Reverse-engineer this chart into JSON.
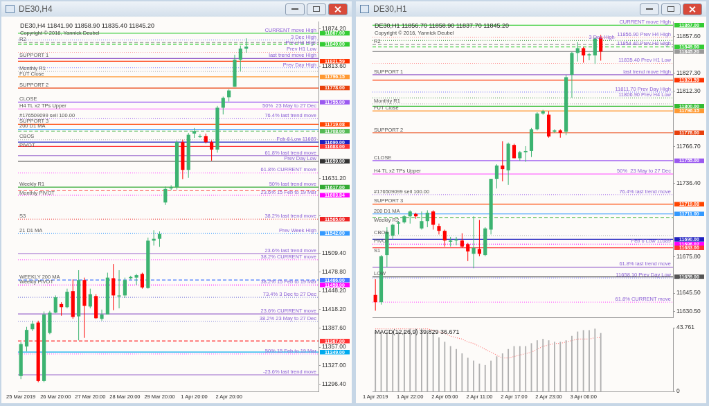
{
  "chart_data": [
    {
      "type": "candlestick",
      "title": "DE30,H4",
      "subtitle": "DE30,H4 11841.90 11858.90 11835.40 11845.20",
      "categories": [
        "25 Mar 2019",
        null,
        null,
        null,
        null,
        null,
        "26 Mar 20:00",
        null,
        null,
        null,
        null,
        null,
        "27 Mar 20:00",
        null,
        null,
        null,
        null,
        null,
        "28 Mar 20:00",
        null,
        null,
        null,
        null,
        null,
        "29 Mar 20:00",
        null,
        null,
        null,
        null,
        null,
        "1 Apr 20:00",
        null,
        null,
        null,
        null,
        null,
        "2 Apr 20:00",
        null,
        null,
        null,
        null,
        null,
        null,
        null,
        null,
        null,
        null,
        null,
        null,
        null,
        null,
        null
      ],
      "ohlc": [
        [
          11310,
          11365,
          11305,
          11362
        ],
        [
          11358,
          11390,
          11350,
          11385
        ],
        [
          11386,
          11400,
          11383,
          11395
        ],
        [
          11397,
          11400,
          11300,
          11302
        ],
        [
          11302,
          11415,
          11300,
          11410
        ],
        [
          11380,
          11416,
          11378,
          11413
        ],
        [
          11413,
          11441,
          11412,
          11438
        ],
        [
          11427,
          11430,
          11408,
          11422
        ],
        [
          11422,
          11452,
          11420,
          11447
        ],
        [
          11448,
          11467,
          11403,
          11406
        ],
        [
          11407,
          11482,
          11368,
          11466
        ],
        [
          11466,
          11470,
          11372,
          11424
        ],
        [
          11423,
          11452,
          11420,
          11443
        ],
        [
          11440,
          11443,
          11403,
          11404
        ],
        [
          11403,
          11418,
          11400,
          11410
        ],
        [
          11410,
          11478,
          11410,
          11470
        ],
        [
          11469,
          11492,
          11417,
          11441
        ],
        [
          11440,
          11482,
          11420,
          11441
        ],
        [
          11441,
          11470,
          11437,
          11466
        ],
        [
          11469,
          11473,
          11467,
          11471
        ],
        [
          11470,
          11476,
          11458,
          11474
        ],
        [
          11476,
          11478,
          11452,
          11454
        ],
        [
          11453,
          11535,
          11452,
          11530
        ],
        [
          11530,
          11547,
          11522,
          11533
        ],
        [
          11533,
          11545,
          11520,
          11541
        ],
        [
          11592,
          11618,
          11588,
          11614
        ],
        [
          11615,
          11620,
          11612,
          11617
        ],
        [
          11617,
          11693,
          11613,
          11690
        ],
        [
          11690,
          11694,
          11630,
          11645
        ],
        [
          11645,
          11705,
          11632,
          11702
        ],
        [
          11704,
          11713,
          11697,
          11708
        ],
        [
          11699,
          11703,
          11697,
          11700
        ],
        [
          11700,
          11704,
          11688,
          11690
        ],
        [
          11690,
          11693,
          11660,
          11678
        ],
        [
          11678,
          11749,
          11673,
          11746
        ],
        [
          11746,
          11764,
          11735,
          11762
        ],
        [
          11763,
          11776,
          11756,
          11774
        ],
        [
          11780,
          11832,
          11780,
          11824
        ],
        [
          11824,
          11847,
          11805,
          11842
        ],
        [
          11841.9,
          11858.9,
          11835.4,
          11845.2
        ],
        null,
        null,
        null,
        null,
        null,
        null,
        null,
        null,
        null,
        null,
        null,
        null
      ],
      "colors": [
        "#3cb371",
        "#3cb371",
        "#3cb371",
        "#ff0000",
        "#3cb371",
        "#3cb371",
        "#3cb371",
        "#ff0000",
        "#3cb371",
        "#ff0000",
        "#3cb371",
        "#ff0000",
        "#3cb371",
        "#ff0000",
        "#3cb371",
        "#3cb371",
        "#ff0000",
        "#3cb371",
        "#3cb371",
        "#3cb371",
        "#3cb371",
        "#ff0000",
        "#3cb371",
        "#3cb371",
        "#3cb371",
        "#3cb371",
        "#3cb371",
        "#3cb371",
        "#ff0000",
        "#3cb371",
        "#3cb371",
        "#3cb371",
        "#ff0000",
        "#ff0000",
        "#3cb371",
        "#3cb371",
        "#3cb371",
        "#3cb371",
        "#3cb371",
        "#3cb371",
        null,
        null,
        null,
        null,
        null,
        null,
        null,
        null,
        null,
        null,
        null,
        null
      ],
      "ylim": [
        11285,
        11886
      ],
      "yticks": [
        {
          "value": 11874.2,
          "label": "11874.20"
        },
        {
          "value": 11813.6,
          "label": "11813.60"
        },
        {
          "value": 11631.2,
          "label": "11631.20"
        },
        {
          "value": 11570,
          "label": null
        },
        {
          "value": 11509.4,
          "label": "11509.40"
        },
        {
          "value": 11478.8,
          "label": "11478.80"
        },
        {
          "value": 11448.2,
          "label": "11448.20"
        },
        {
          "value": 11418.2,
          "label": "11418.20"
        },
        {
          "value": 11387.6,
          "label": "11387.60"
        },
        {
          "value": 11357,
          "label": "11357.00"
        },
        {
          "value": 11327,
          "label": "11327.00"
        },
        {
          "value": 11296.4,
          "label": "11296.40"
        }
      ],
      "ref_lines": [
        {
          "axis": "y",
          "value": 11867,
          "label": "11867.00",
          "color": "#33cc33",
          "line_style": "solid"
        },
        {
          "axis": "y",
          "value": 11856,
          "color": "#8888ff",
          "line_style": "dotted"
        },
        {
          "axis": "y",
          "value": 11852,
          "color": "#aaaaaa",
          "line_style": "dashed"
        },
        {
          "axis": "y",
          "value": 11849,
          "label": "11849.00",
          "color": "#33cc33",
          "line_style": "dashed"
        },
        {
          "axis": "y",
          "value": 11836,
          "color": "#ff9999",
          "line_style": "dotted"
        },
        {
          "axis": "y",
          "value": 11826,
          "color": "#9966cc",
          "line_style": "solid"
        },
        {
          "axis": "y",
          "value": 11821.59,
          "label": "11821.59",
          "color": "#ff3300",
          "line_style": "solid"
        },
        {
          "axis": "y",
          "value": 11811,
          "color": "#8888ff",
          "line_style": "dotted"
        },
        {
          "axis": "y",
          "value": 11805,
          "color": "#bbbbbb",
          "line_style": "dotted"
        },
        {
          "axis": "y",
          "value": 11796.15,
          "label": "11796.15",
          "color": "#ff9933",
          "line_style": "solid"
        },
        {
          "axis": "y",
          "value": 11778,
          "label": "11778.00",
          "color": "#e8400c",
          "line_style": "solid"
        },
        {
          "axis": "y",
          "value": 11755,
          "label": "11755.00",
          "color": "#9b59f0",
          "line_style": "solid"
        },
        {
          "axis": "y",
          "value": 11744,
          "color": "#ff66ff",
          "line_style": "solid"
        },
        {
          "axis": "y",
          "value": 11728,
          "color": "#aa77ee",
          "line_style": "dotted"
        },
        {
          "axis": "y",
          "value": 11719.08,
          "label": "11719.08",
          "color": "#ff4500",
          "line_style": "solid"
        },
        {
          "axis": "y",
          "value": 11711,
          "color": "#3399ff",
          "line_style": "solid"
        },
        {
          "axis": "y",
          "value": 11708,
          "label": "11708.00",
          "color": "#55bb55",
          "line_style": "dashed"
        },
        {
          "axis": "y",
          "value": 11694,
          "color": "#bbbbbb",
          "line_style": "dotted"
        },
        {
          "axis": "y",
          "value": 11690,
          "label": "11690.00",
          "color": "#2020c0",
          "line_style": "solid"
        },
        {
          "axis": "y",
          "value": 11683,
          "label": "11683.00",
          "color": "#ff3333",
          "line_style": "solid"
        },
        {
          "axis": "y",
          "value": 11668,
          "color": "#9966cc",
          "line_style": "solid"
        },
        {
          "axis": "y",
          "value": 11659,
          "label": "11659.00",
          "color": "#333333",
          "line_style": "solid"
        },
        {
          "axis": "y",
          "value": 11640,
          "color": "#ff66ff",
          "line_style": "dotted"
        },
        {
          "axis": "y",
          "value": 11617,
          "label": "11617.00",
          "color": "#33aa33",
          "line_style": "solid"
        },
        {
          "axis": "y",
          "value": 11612,
          "color": "#ff4444",
          "line_style": "dashed"
        },
        {
          "axis": "y",
          "value": 11603.84,
          "label": "11603.84",
          "color": "#ff00ff",
          "line_style": "dotted"
        },
        {
          "axis": "y",
          "value": 11565,
          "label": "11565.00",
          "color": "#ee2222",
          "line_style": "dotted"
        },
        {
          "axis": "y",
          "value": 11542,
          "label": "11542.00",
          "color": "#3399ff",
          "line_style": "dotted"
        },
        {
          "axis": "y",
          "value": 11509,
          "color": "#9966cc",
          "line_style": "solid"
        },
        {
          "axis": "y",
          "value": 11499,
          "color": "#ff66ff",
          "line_style": "dotted"
        },
        {
          "axis": "y",
          "value": 11466,
          "label": "11466.00",
          "color": "#4477ff",
          "line_style": "dashed"
        },
        {
          "axis": "y",
          "value": 11458,
          "label": "11458.00",
          "color": "#ff00ff",
          "line_style": "dotted"
        },
        {
          "axis": "y",
          "value": 11438,
          "color": "#8888dd",
          "line_style": "dotted"
        },
        {
          "axis": "y",
          "value": 11411,
          "color": "#9966cc",
          "line_style": "solid"
        },
        {
          "axis": "y",
          "value": 11399,
          "color": "#8888dd",
          "line_style": "dotted"
        },
        {
          "axis": "y",
          "value": 11367,
          "label": "11367.00",
          "color": "#ff3333",
          "line_style": "dashed"
        },
        {
          "axis": "y",
          "value": 11349,
          "label": "11349.00",
          "color": "#00aaee",
          "line_style": "solid"
        },
        {
          "axis": "y",
          "value": 11346,
          "color": "#ff66ff",
          "line_style": "dotted"
        },
        {
          "axis": "y",
          "value": 11312,
          "color": "#9966cc",
          "line_style": "solid"
        }
      ],
      "annotations": [
        "Copyright © 2016, Yannick Deubel",
        {
          "text": "R2",
          "x": "25 Mar 2019",
          "y": 11852
        },
        {
          "text": "SUPPORT 1",
          "x": "25 Mar 2019",
          "y": 11826
        },
        {
          "text": "Monthly R1",
          "x": "25 Mar 2019",
          "y": 11805
        },
        {
          "text": "FUT Close",
          "x": "25 Mar 2019",
          "y": 11796.15
        },
        {
          "text": "SUPPORT 2",
          "x": "25 Mar 2019",
          "y": 11778
        },
        {
          "text": "CLOSE",
          "x": "25 Mar 2019",
          "y": 11755
        },
        {
          "text": "H4 TL x2 TPs Upper",
          "x": "25 Mar 2019",
          "y": 11744
        },
        {
          "text": "#176509099 sell 100.00",
          "x": "25 Mar 2019",
          "y": 11728
        },
        {
          "text": "SUPPORT 3",
          "x": "25 Mar 2019",
          "y": 11719.08
        },
        {
          "text": "200 D1 MA",
          "x": "25 Mar 2019",
          "y": 11711
        },
        {
          "text": "CBOS",
          "x": "25 Mar 2019",
          "y": 11694
        },
        {
          "text": "PIVOT",
          "x": "25 Mar 2019",
          "y": 11690
        },
        {
          "text": "Weekly R1",
          "x": "25 Mar 2019",
          "y": 11617
        },
        {
          "text": "Monthly PIVOT",
          "x": "25 Mar 2019",
          "y": 11612
        },
        {
          "text": "S3",
          "x": "25 Mar 2019",
          "y": 11565
        },
        {
          "text": "21 D1 MA",
          "x": "25 Mar 2019",
          "y": 11542
        },
        {
          "text": "WEEKLY 200 MA",
          "x": "25 Mar 2019",
          "y": 11466
        },
        {
          "text": "Weekly PIVOT",
          "x": "25 Mar 2019",
          "y": 11458
        },
        {
          "text": "CURRENT move High",
          "y": 11867
        },
        {
          "text": "3 Dec High",
          "y": 11856
        },
        {
          "text": "Prev H4 High",
          "y": 11856
        },
        {
          "text": "Prev H1 Low",
          "y": 11836
        },
        {
          "text": "last trend move High",
          "y": 11826
        },
        {
          "text": "Prev Day High",
          "y": 11811
        },
        {
          "text": "50%  23 May to 27 Dec",
          "y": 11744
        },
        {
          "text": "76.4% last trend move",
          "y": 11728
        },
        {
          "text": "Feb 6 Low 11689",
          "y": 11690
        },
        {
          "text": "61.8% last trend move",
          "y": 11668
        },
        {
          "text": "Prev Day Low",
          "y": 11659
        },
        {
          "text": "61.8% CURRENT move",
          "y": 11640
        },
        {
          "text": "50% last trend move",
          "y": 11617
        },
        {
          "text": "23.6% 15 Feb to 19 Mar",
          "y": 11603.84
        },
        {
          "text": "38.2% last trend move",
          "y": 11565
        },
        {
          "text": "Prev Week High",
          "y": 11542
        },
        {
          "text": "23.6% last trend move",
          "y": 11509
        },
        {
          "text": "38.2% CURRENT move",
          "y": 11499
        },
        {
          "text": "38.2% 15 Feb to 19 Mar",
          "y": 11458
        },
        {
          "text": "73.4% 3 Dec to 27 Dec",
          "y": 11438
        },
        {
          "text": "23.6% CURRENT move",
          "y": 11411
        },
        {
          "text": "38.2% 23 May to 27 Dec",
          "y": 11399
        },
        {
          "text": "50% 15 Feb to 19 Mar",
          "y": 11346
        },
        {
          "text": "-23.6% last trend move",
          "y": 11312
        }
      ]
    },
    {
      "type": "candlestick",
      "title": "DE30,H1",
      "subtitle": "DE30,H1 11856.70 11858.90 11837.70 11845.20",
      "tick_labels": "y",
      "categories": [
        "1 Apr 2019",
        null,
        null,
        null,
        null,
        null,
        "1 Apr 22:00",
        null,
        null,
        null,
        null,
        null,
        "2 Apr 05:00",
        null,
        null,
        null,
        null,
        null,
        "2 Apr 11:00",
        null,
        null,
        null,
        null,
        null,
        "2 Apr 17:00",
        null,
        null,
        null,
        null,
        null,
        "2 Apr 23:00",
        null,
        null,
        null,
        null,
        null,
        "3 Apr 06:00",
        null,
        null,
        null,
        null,
        null,
        null,
        null,
        null,
        null,
        null,
        null,
        null,
        null,
        null,
        null
      ],
      "ohlc": [
        [
          11644,
          11657,
          11631,
          11638
        ],
        [
          11638,
          11677,
          11636,
          11676
        ],
        [
          11677,
          11700,
          11667,
          11696
        ],
        [
          11693,
          11703,
          11690,
          11702
        ],
        [
          11703,
          11705,
          11694,
          11704
        ],
        [
          11704,
          11710,
          11703,
          11709
        ],
        [
          11709,
          11714,
          11703,
          11713
        ],
        [
          11711,
          11712,
          11707,
          11709
        ],
        [
          11699,
          11713,
          11698,
          11705
        ],
        [
          11705,
          11714,
          11700,
          11712
        ],
        [
          11713,
          11714,
          11698,
          11702
        ],
        [
          11701,
          11703,
          11694,
          11697
        ],
        [
          11697,
          11698,
          11684,
          11689
        ],
        [
          11688,
          11692,
          11684,
          11689
        ],
        [
          11689,
          11692,
          11685,
          11690
        ],
        [
          11689,
          11695,
          11683,
          11684
        ],
        [
          11686,
          11687,
          11672,
          11680
        ],
        [
          11678,
          11709,
          11666,
          11683
        ],
        [
          11682,
          11706,
          11676,
          11678
        ],
        [
          11677,
          11700,
          11676,
          11699
        ],
        [
          11698,
          11740,
          11694,
          11740
        ],
        [
          11740,
          11752,
          11732,
          11751
        ],
        [
          11751,
          11771,
          11738,
          11748
        ],
        [
          11747,
          11770,
          11735,
          11769
        ],
        [
          11768,
          11769,
          11757,
          11757
        ],
        [
          11757,
          11763,
          11755,
          11762
        ],
        [
          11762,
          11767,
          11754,
          11763
        ],
        [
          11763,
          11782,
          11758,
          11781
        ],
        [
          11781,
          11795,
          11780,
          11794
        ],
        [
          11794,
          11797,
          11793,
          11796
        ],
        [
          11793,
          11796,
          11774,
          11775
        ],
        [
          11779,
          11781,
          11778,
          11780
        ],
        [
          11780,
          11781,
          11774,
          11778
        ],
        [
          11779,
          11826,
          11776,
          11824
        ],
        [
          11826,
          11845,
          11807,
          11844
        ],
        [
          11844,
          11853,
          11837,
          11848
        ],
        [
          11848,
          11849,
          11836,
          11842
        ],
        [
          11842,
          11844,
          11838,
          11843
        ],
        [
          11842,
          11857,
          11835,
          11856
        ],
        [
          11856.7,
          11858.9,
          11837.7,
          11845.2
        ],
        null,
        null,
        null,
        null,
        null,
        null,
        null,
        null,
        null,
        null,
        null,
        null
      ],
      "colors": [
        "#ff0000",
        "#3cb371",
        "#3cb371",
        "#3cb371",
        "#3cb371",
        "#3cb371",
        "#3cb371",
        "#ff0000",
        "#3cb371",
        "#3cb371",
        "#ff0000",
        "#ff0000",
        "#ff0000",
        "#3cb371",
        "#3cb371",
        "#ff0000",
        "#ff0000",
        "#3cb371",
        "#ff0000",
        "#3cb371",
        "#3cb371",
        "#3cb371",
        "#ff0000",
        "#3cb371",
        "#ff0000",
        "#3cb371",
        "#3cb371",
        "#3cb371",
        "#3cb371",
        "#3cb371",
        "#ff0000",
        "#3cb371",
        "#ff0000",
        "#3cb371",
        "#3cb371",
        "#3cb371",
        "#ff0000",
        "#3cb371",
        "#3cb371",
        "#ff0000",
        null,
        null,
        null,
        null,
        null,
        null,
        null,
        null,
        null,
        null,
        null,
        null
      ],
      "ylim": [
        11625,
        11870
      ],
      "yticks": [
        {
          "value": 11857.6,
          "label": "11857.60"
        },
        {
          "value": 11827.3,
          "label": "11827.30"
        },
        {
          "value": 11812.3,
          "label": "11812.30"
        },
        {
          "value": 11766.7,
          "label": "11766.70"
        },
        {
          "value": 11736.4,
          "label": "11736.40"
        },
        {
          "value": 11675.8,
          "label": "11675.80"
        },
        {
          "value": 11645.5,
          "label": "11645.50"
        },
        {
          "value": 11630.5,
          "label": "11630.50"
        }
      ],
      "ref_lines": [
        {
          "axis": "y",
          "value": 11867,
          "label": "11867.00",
          "color": "#33cc33",
          "line_style": "solid"
        },
        {
          "axis": "y",
          "value": 11856.9,
          "color": "#ff9999",
          "line_style": "dotted"
        },
        {
          "axis": "y",
          "value": 11854.4,
          "color": "#66aa66",
          "line_style": "dotted"
        },
        {
          "axis": "y",
          "value": 11851,
          "color": "#aaaaaa",
          "line_style": "dashed"
        },
        {
          "axis": "y",
          "value": 11849,
          "label": "11849.00",
          "color": "#33cc33",
          "line_style": "dashed"
        },
        {
          "axis": "y",
          "value": 11845.2,
          "label": "11845.20",
          "color": "#999999",
          "line_style": "solid"
        },
        {
          "axis": "y",
          "value": 11835.4,
          "color": "#ff9999",
          "line_style": "dotted"
        },
        {
          "axis": "y",
          "value": 11826,
          "color": "#9966cc",
          "line_style": "solid"
        },
        {
          "axis": "y",
          "value": 11821.59,
          "label": "11821.59",
          "color": "#ff3300",
          "line_style": "solid"
        },
        {
          "axis": "y",
          "value": 11811.7,
          "color": "#8888ff",
          "line_style": "dotted"
        },
        {
          "axis": "y",
          "value": 11806.9,
          "color": "#66aa66",
          "line_style": "dotted"
        },
        {
          "axis": "y",
          "value": 11802,
          "color": "#bbbbbb",
          "line_style": "dotted"
        },
        {
          "axis": "y",
          "value": 11800,
          "label": "11800.00",
          "color": "#33bb33",
          "line_style": "solid"
        },
        {
          "axis": "y",
          "value": 11796.15,
          "label": "11796.15",
          "color": "#ff9933",
          "line_style": "solid"
        },
        {
          "axis": "y",
          "value": 11778,
          "label": "11778.00",
          "color": "#e8400c",
          "line_style": "solid"
        },
        {
          "axis": "y",
          "value": 11755,
          "label": "11755.00",
          "color": "#9b59f0",
          "line_style": "solid"
        },
        {
          "axis": "y",
          "value": 11744,
          "color": "#ff66ff",
          "line_style": "solid"
        },
        {
          "axis": "y",
          "value": 11727,
          "color": "#aa77ee",
          "line_style": "dotted"
        },
        {
          "axis": "y",
          "value": 11719.08,
          "label": "11719.08",
          "color": "#ff4500",
          "line_style": "solid"
        },
        {
          "axis": "y",
          "value": 11711,
          "label": "11711.00",
          "color": "#3399ff",
          "line_style": "solid"
        },
        {
          "axis": "y",
          "value": 11708,
          "color": "#55bb55",
          "line_style": "dashed"
        },
        {
          "axis": "y",
          "value": 11693,
          "color": "#bbbbbb",
          "line_style": "dotted"
        },
        {
          "axis": "y",
          "value": 11690,
          "label": "11690.00",
          "color": "#2020c0",
          "line_style": "solid"
        },
        {
          "axis": "y",
          "value": 11686.02,
          "label": "11686.02",
          "color": "#ff00ff",
          "line_style": "dotted"
        },
        {
          "axis": "y",
          "value": 11683,
          "label": "11683.00",
          "color": "#ff3333",
          "line_style": "solid"
        },
        {
          "axis": "y",
          "value": 11667,
          "color": "#9966cc",
          "line_style": "solid"
        },
        {
          "axis": "y",
          "value": 11659,
          "label": "11659.00",
          "color": "#555555",
          "line_style": "solid"
        },
        {
          "axis": "y",
          "value": 11658.1,
          "color": "#8888ff",
          "line_style": "dotted"
        },
        {
          "axis": "y",
          "value": 11638,
          "color": "#ff66ff",
          "line_style": "dotted"
        }
      ],
      "annotations": [
        "Copyright © 2016, Yannick Deubel",
        {
          "text": "R2",
          "x": "1 Apr 2019",
          "y": 11851
        },
        {
          "text": "SUPPORT 1",
          "x": "1 Apr 2019",
          "y": 11826
        },
        {
          "text": "Monthly R1",
          "x": "1 Apr 2019",
          "y": 11802
        },
        {
          "text": "FUT Close",
          "x": "1 Apr 2019",
          "y": 11796.15
        },
        {
          "text": "SUPPORT 2",
          "x": "1 Apr 2019",
          "y": 11778
        },
        {
          "text": "CLOSE",
          "x": "1 Apr 2019",
          "y": 11755
        },
        {
          "text": "H4 TL x2 TPs Upper",
          "x": "1 Apr 2019",
          "y": 11744
        },
        {
          "text": "#176509099 sell 100.00",
          "x": "1 Apr 2019",
          "y": 11727
        },
        {
          "text": "SUPPORT 3",
          "x": "1 Apr 2019",
          "y": 11719.08
        },
        {
          "text": "200 D1 MA",
          "x": "1 Apr 2019",
          "y": 11711
        },
        {
          "text": "Weekly R2",
          "x": "1 Apr 2019",
          "y": 11708
        },
        {
          "text": "CBOS",
          "x": "1 Apr 2019",
          "y": 11693
        },
        {
          "text": "PIVOT",
          "x": "1 Apr 2019",
          "y": 11686.02
        },
        {
          "text": "S1",
          "x": "1 Apr 2019",
          "y": 11683
        },
        {
          "text": "LOW",
          "x": "1 Apr 2019",
          "y": 11659
        },
        {
          "text": "CURRENT move High",
          "y": 11867
        },
        {
          "text": "11856.90 Prev H4 High",
          "y": 11856.9
        },
        {
          "text": "11854.40 Prev H4 High",
          "y": 11854.4
        },
        {
          "text": "3 Dec High",
          "y": 11854.4
        },
        {
          "text": "11835.40 Prev H1 Low",
          "y": 11835.4
        },
        {
          "text": "last trend move High",
          "y": 11826
        },
        {
          "text": "11811.70 Prev Day High",
          "y": 11811.7
        },
        {
          "text": "11806.90 Prev H4 Low",
          "y": 11806.9
        },
        {
          "text": "50%  23 May to 27 Dec",
          "y": 11744
        },
        {
          "text": "76.4% last trend move",
          "y": 11727
        },
        {
          "text": "Feb 6 Low 11689",
          "y": 11686.02
        },
        {
          "text": "61.8% last trend move",
          "y": 11667
        },
        {
          "text": "11658.10 Prev Day Low",
          "y": 11658.1
        },
        {
          "text": "61.8% CURRENT move",
          "y": 11638
        }
      ]
    },
    {
      "type": "bar",
      "subtitle": "MACD(12,26,9) 39.829 36.671",
      "categories": [
        "1 Apr 2019",
        null,
        null,
        null,
        null,
        null,
        "1 Apr 22:00",
        null,
        null,
        null,
        null,
        null,
        "2 Apr 05:00",
        null,
        null,
        null,
        null,
        null,
        "2 Apr 11:00",
        null,
        null,
        null,
        null,
        null,
        "2 Apr 17:00",
        null,
        null,
        null,
        null,
        null,
        "2 Apr 23:00",
        null,
        null,
        null,
        null,
        null,
        "3 Apr 06:00",
        null,
        null,
        null,
        null,
        null,
        null,
        null,
        null,
        null,
        null,
        null,
        null,
        null,
        null,
        null
      ],
      "series": [
        {
          "type": "bar",
          "color": "#b0b0b0",
          "values": [
            41,
            41,
            41,
            41,
            41,
            42,
            43,
            43,
            43,
            42,
            40,
            37,
            34,
            31,
            29,
            26,
            23,
            21,
            19,
            18,
            21,
            24,
            26,
            29,
            31,
            31,
            31,
            33,
            35,
            36,
            35,
            34,
            34,
            35,
            38,
            41,
            42,
            42,
            43,
            40,
            null,
            null,
            null,
            null,
            null,
            null,
            null,
            null,
            null,
            null,
            null,
            null
          ]
        },
        {
          "type": "line",
          "color": "#ff7777",
          "line_style": "dotted",
          "values": [
            43,
            43,
            43,
            43,
            43,
            43,
            43,
            43,
            43,
            43,
            42,
            41,
            40,
            38,
            37,
            36,
            34,
            33,
            31,
            29,
            27,
            25,
            23,
            23,
            24,
            25,
            26,
            27,
            29,
            31,
            32,
            33,
            33,
            34,
            35,
            36,
            36,
            36,
            37,
            37,
            null,
            null,
            null,
            null,
            null,
            null,
            null,
            null,
            null,
            null,
            null,
            null
          ]
        }
      ],
      "ylim": [
        0,
        43.761
      ],
      "yticks": [
        0,
        43.761
      ]
    }
  ]
}
